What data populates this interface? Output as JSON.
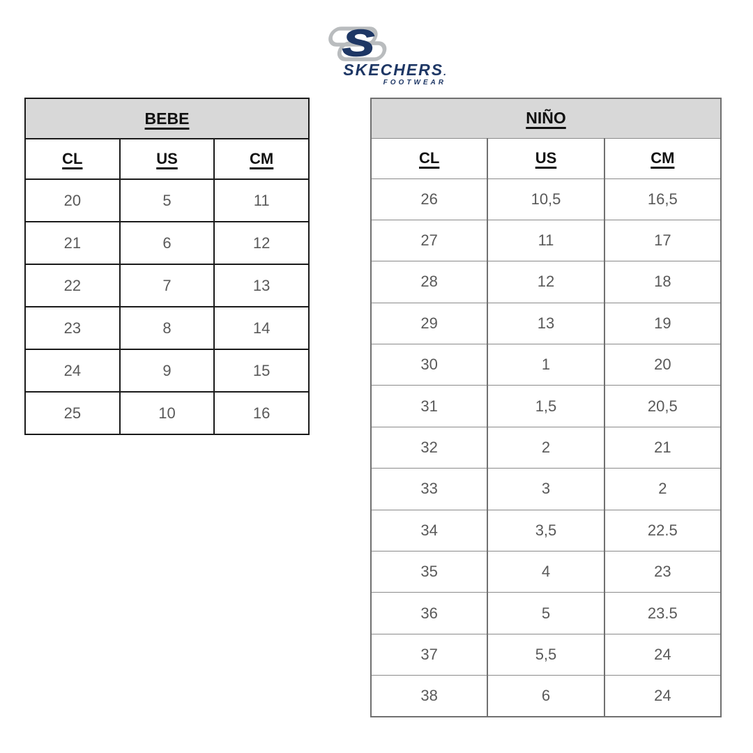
{
  "logo": {
    "letter": "S",
    "brand": "SKECHERS",
    "mark": ".",
    "tagline": "FOOTWEAR"
  },
  "colors": {
    "navy": "#1e3765",
    "silver": "#b9bcbe",
    "title_fill": "#d8d8d8",
    "header_text": "#111111",
    "data_text": "#595959",
    "left_border": "#1a1a1a",
    "right_border_v": "#707070",
    "right_border_h": "#8a8a8a"
  },
  "tables": [
    {
      "title": "BEBE",
      "columns": [
        "CL",
        "US",
        "CM"
      ],
      "rows": [
        [
          "20",
          "5",
          "11"
        ],
        [
          "21",
          "6",
          "12"
        ],
        [
          "22",
          "7",
          "13"
        ],
        [
          "23",
          "8",
          "14"
        ],
        [
          "24",
          "9",
          "15"
        ],
        [
          "25",
          "10",
          "16"
        ]
      ]
    },
    {
      "title": "NIÑO",
      "columns": [
        "CL",
        "US",
        "CM"
      ],
      "rows": [
        [
          "26",
          "10,5",
          "16,5"
        ],
        [
          "27",
          "11",
          "17"
        ],
        [
          "28",
          "12",
          "18"
        ],
        [
          "29",
          "13",
          "19"
        ],
        [
          "30",
          "1",
          "20"
        ],
        [
          "31",
          "1,5",
          "20,5"
        ],
        [
          "32",
          "2",
          "21"
        ],
        [
          "33",
          "3",
          "2"
        ],
        [
          "34",
          "3,5",
          "22.5"
        ],
        [
          "35",
          "4",
          "23"
        ],
        [
          "36",
          "5",
          "23.5"
        ],
        [
          "37",
          "5,5",
          "24"
        ],
        [
          "38",
          "6",
          "24"
        ]
      ]
    }
  ]
}
